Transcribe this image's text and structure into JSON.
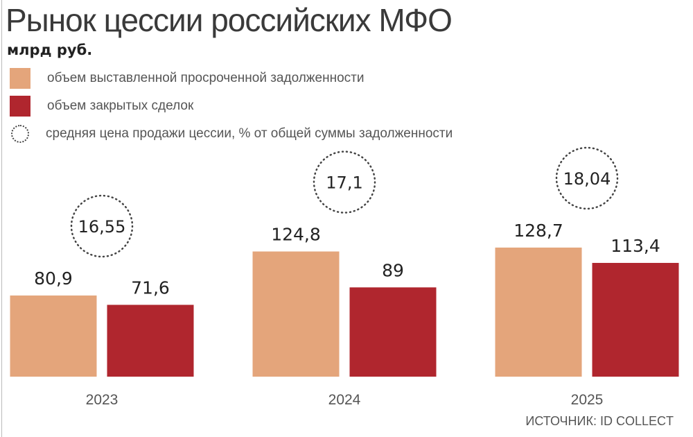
{
  "chart_data": {
    "type": "bar",
    "title": "Рынок цессии российских МФО",
    "subtitle": "млрд руб.",
    "categories": [
      "2023",
      "2024",
      "2025"
    ],
    "series": [
      {
        "name": "объем выставленной просроченной задолженности",
        "values": [
          80.9,
          124.8,
          128.7
        ],
        "labels": [
          "80,9",
          "124,8",
          "128,7"
        ],
        "color": "#E4A57B"
      },
      {
        "name": "объем закрытых сделок",
        "values": [
          71.6,
          89,
          113.4
        ],
        "labels": [
          "71,6",
          "89",
          "113,4"
        ],
        "color": "#B0262E"
      }
    ],
    "annotation_series": {
      "name": "средняя цена продажи цессии, % от общей суммы задолженности",
      "values": [
        16.55,
        17.1,
        18.04
      ],
      "labels": [
        "16,55",
        "17,1",
        "18,04"
      ],
      "marker": "dotted-circle"
    },
    "ylim": [
      0,
      140
    ],
    "grid": false,
    "legend_placement": "top-left",
    "source": "ИСТОЧНИК: ID COLLECT"
  }
}
